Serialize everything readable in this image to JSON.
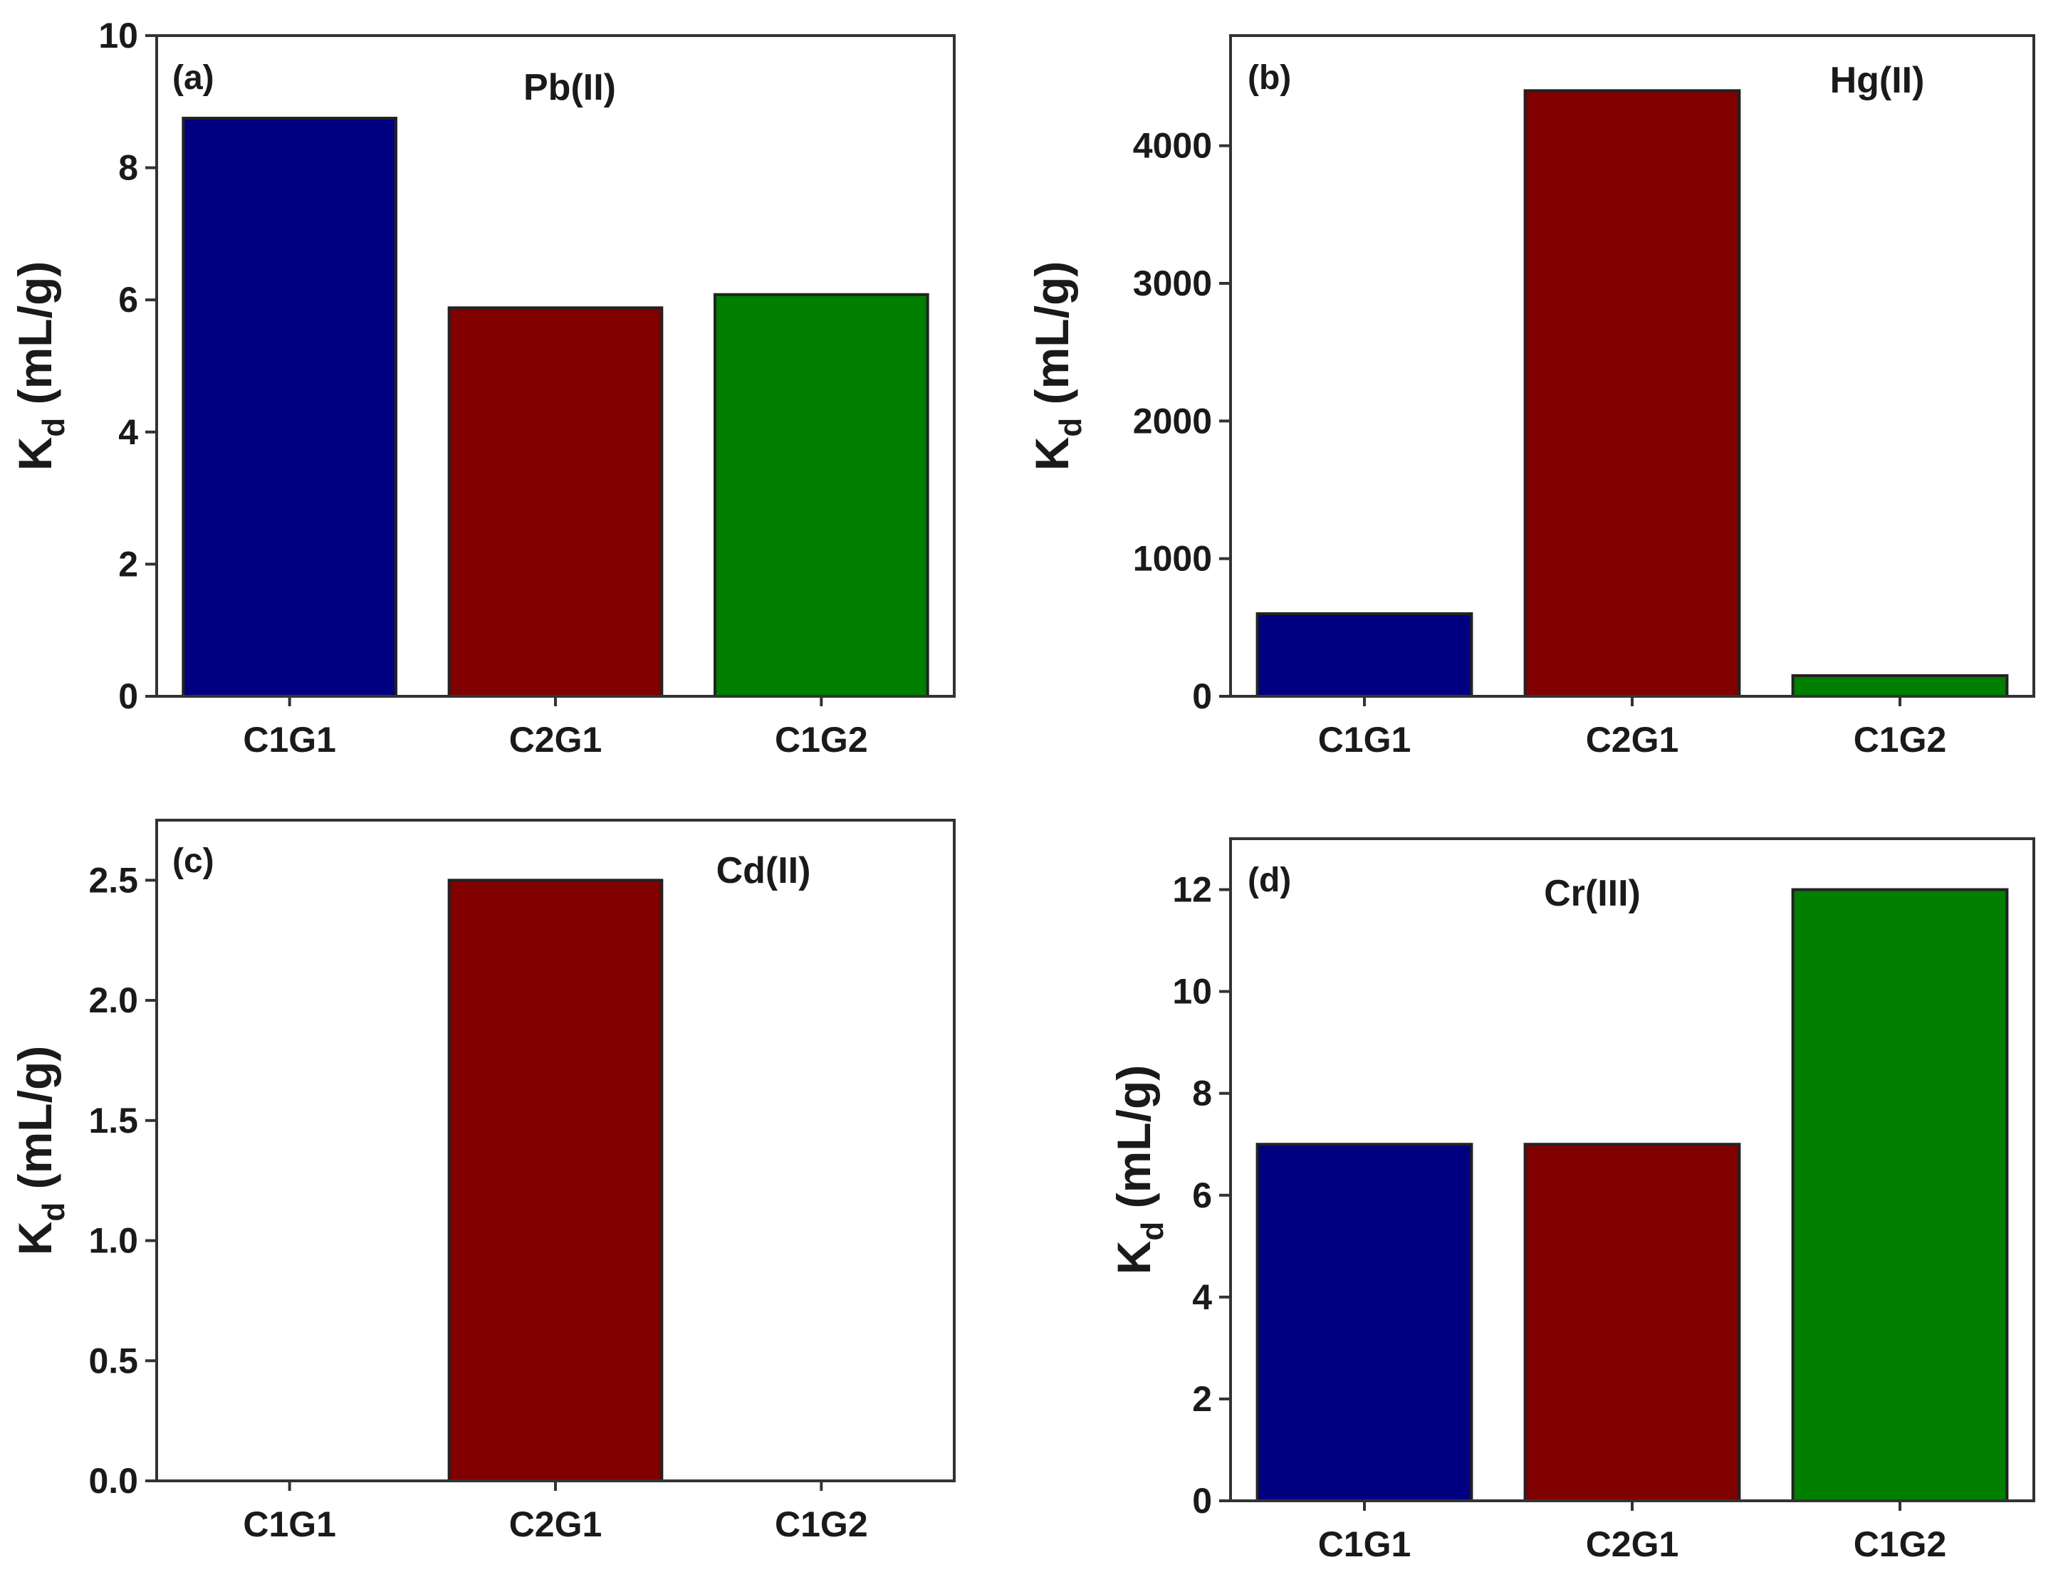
{
  "colors": {
    "C1G1": "#000080",
    "C2G1": "#800000",
    "C1G2": "#007F00",
    "axis": "#333333",
    "bar_edge": "#222222"
  },
  "chart_data": [
    {
      "type": "bar",
      "panel": "(a)",
      "title": "Pb(II)",
      "categories": [
        "C1G1",
        "C2G1",
        "C1G2"
      ],
      "values": [
        8.75,
        5.88,
        6.08
      ],
      "ylabel_main": "K",
      "ylabel_sub": "d",
      "ylabel_unit": "(mL/g)",
      "ylim": [
        0,
        10
      ],
      "yticks": [
        0,
        2,
        4,
        6,
        8,
        10
      ],
      "ytick_labels": [
        "0",
        "2",
        "4",
        "6",
        "8",
        "10"
      ],
      "grid": false,
      "legend": "none"
    },
    {
      "type": "bar",
      "panel": "(b)",
      "title": "Hg(II)",
      "categories": [
        "C1G1",
        "C2G1",
        "C1G2"
      ],
      "values": [
        600,
        4400,
        150
      ],
      "ylabel_main": "K",
      "ylabel_sub": "d",
      "ylabel_unit": "(mL/g)",
      "ylim": [
        0,
        4800
      ],
      "yticks": [
        0,
        1000,
        2000,
        3000,
        4000
      ],
      "ytick_labels": [
        "0",
        "1000",
        "2000",
        "3000",
        "4000"
      ],
      "grid": false,
      "legend": "none"
    },
    {
      "type": "bar",
      "panel": "(c)",
      "title": "Cd(II)",
      "categories": [
        "C1G1",
        "C2G1",
        "C1G2"
      ],
      "values": [
        0,
        2.5,
        0
      ],
      "ylabel_main": "K",
      "ylabel_sub": "d",
      "ylabel_unit": "(mL/g)",
      "ylim": [
        0,
        2.75
      ],
      "yticks": [
        0,
        0.5,
        1.0,
        1.5,
        2.0,
        2.5
      ],
      "ytick_labels": [
        "0.0",
        "0.5",
        "1.0",
        "1.5",
        "2.0",
        "2.5"
      ],
      "grid": false,
      "legend": "none"
    },
    {
      "type": "bar",
      "panel": "(d)",
      "title": "Cr(III)",
      "categories": [
        "C1G1",
        "C2G1",
        "C1G2"
      ],
      "values": [
        7,
        7,
        12
      ],
      "ylabel_main": "K",
      "ylabel_sub": "d",
      "ylabel_unit": "(mL/g)",
      "ylim": [
        0,
        13
      ],
      "yticks": [
        0,
        2,
        4,
        6,
        8,
        10,
        12
      ],
      "ytick_labels": [
        "0",
        "2",
        "4",
        "6",
        "8",
        "10",
        "12"
      ],
      "grid": false,
      "legend": "none"
    }
  ]
}
